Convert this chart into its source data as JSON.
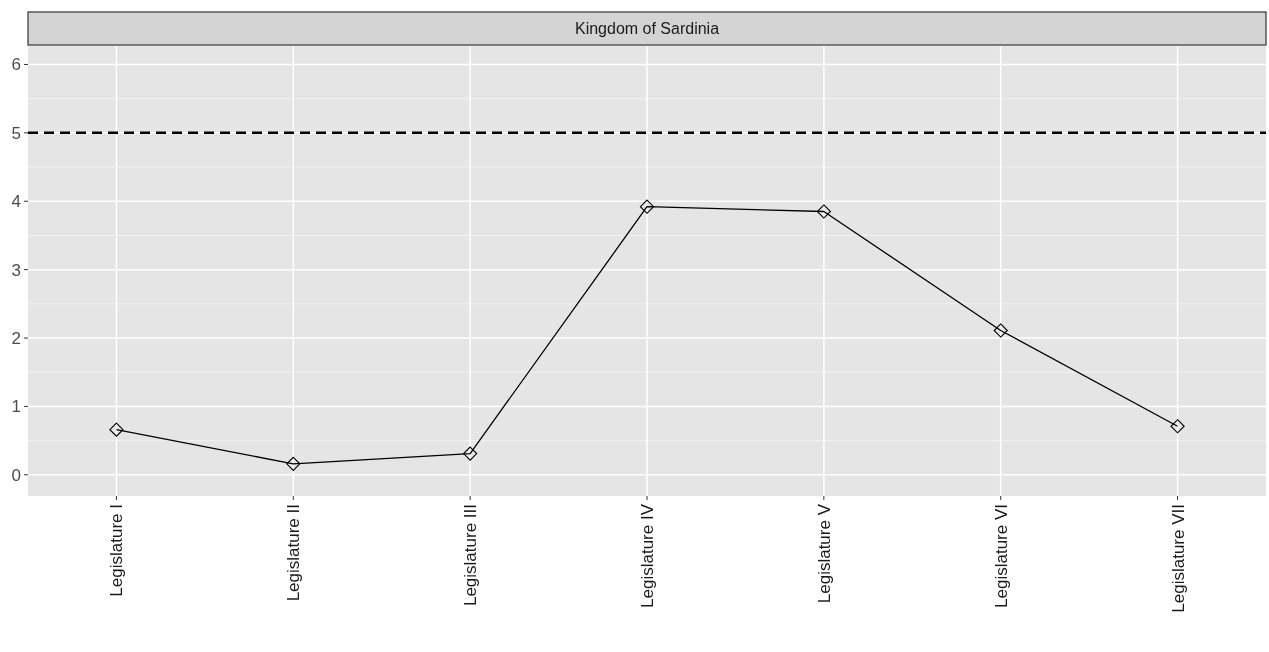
{
  "chart_data": {
    "type": "line",
    "title": "Kingdom of Sardinia",
    "categories": [
      "Legislature I",
      "Legislature II",
      "Legislature III",
      "Legislature IV",
      "Legislature V",
      "Legislature VI",
      "Legislature VII"
    ],
    "series": [
      {
        "color": "#000000",
        "values": [
          0.66,
          0.16,
          0.31,
          3.92,
          3.85,
          2.11,
          0.71
        ]
      }
    ],
    "ylim": [
      -0.31,
      6.27
    ],
    "yticks": [
      0,
      1,
      2,
      3,
      4,
      5,
      6
    ],
    "grid": true,
    "marker": "diamond",
    "line_style": "solid",
    "ref_lines": [
      {
        "axis": "y",
        "value": 5,
        "color": "#000000",
        "line_style": "dashed"
      }
    ]
  }
}
